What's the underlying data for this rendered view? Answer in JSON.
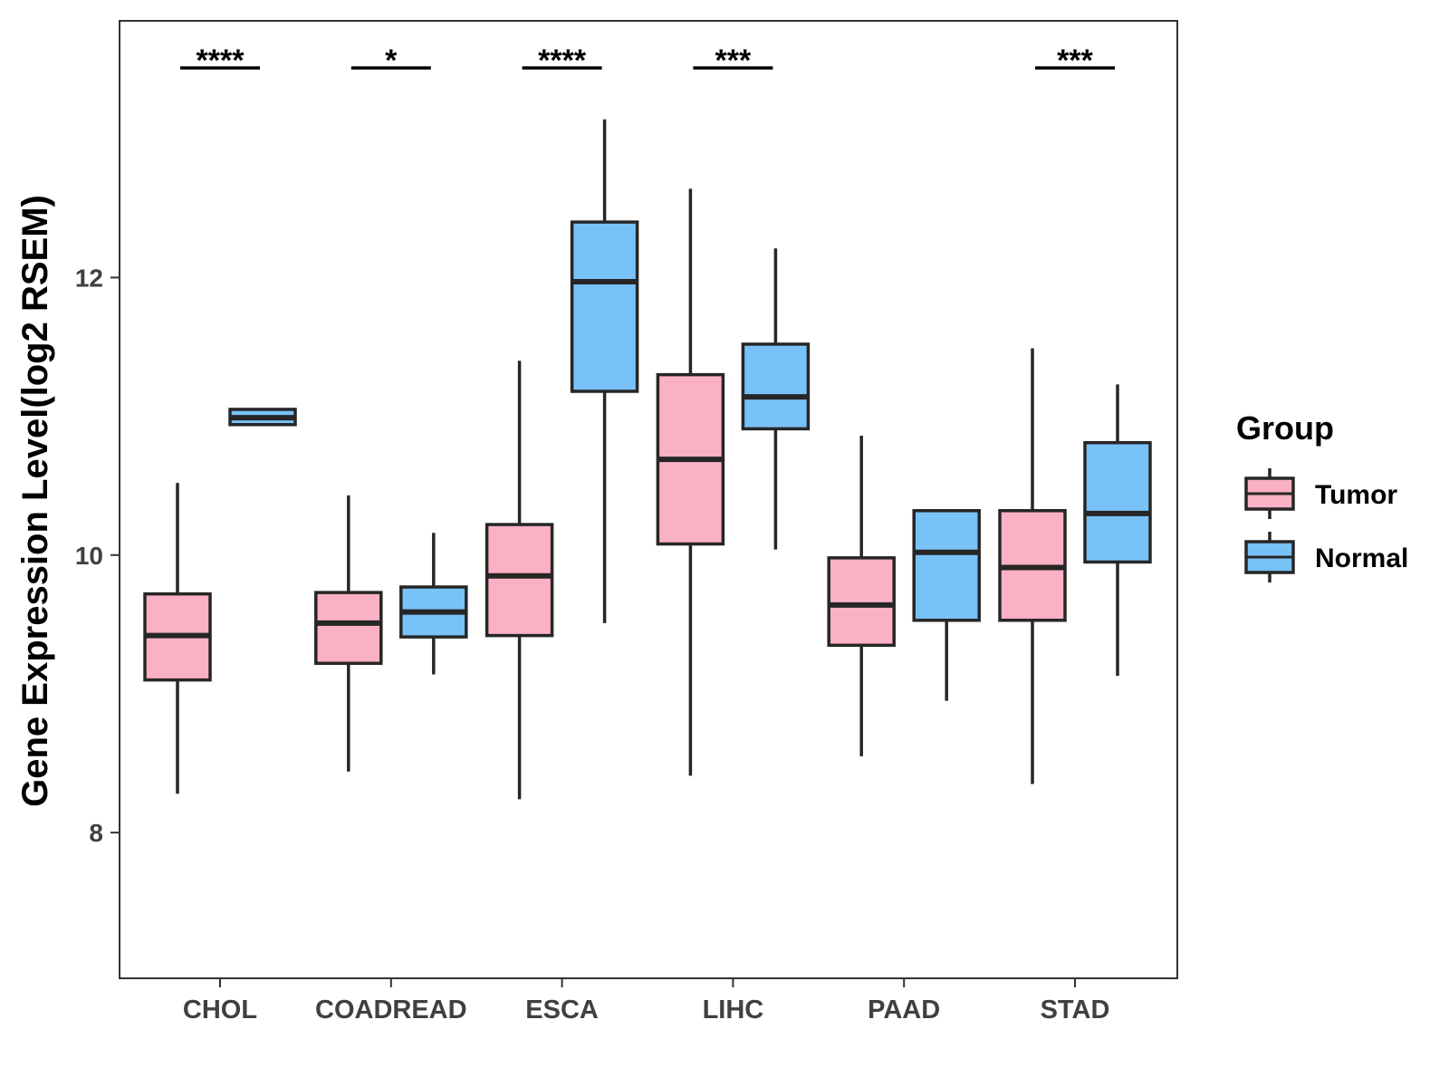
{
  "chart_data": {
    "type": "boxplot",
    "title": "",
    "xlabel": "",
    "ylabel": "Gene Expression Level(log2 RSEM)",
    "ylim": [
      6.95,
      13.85
    ],
    "yticks": [
      8,
      10,
      12
    ],
    "grid": false,
    "categories": [
      "CHOL",
      "COADREAD",
      "ESCA",
      "LIHC",
      "PAAD",
      "STAD"
    ],
    "legend": {
      "title": "Group",
      "position": "right",
      "entries": [
        "Tumor",
        "Normal"
      ]
    },
    "colors": {
      "Tumor": "#fbb1c4",
      "Normal": "#78c2f8",
      "outline": "#262626"
    },
    "series": [
      {
        "name": "Tumor",
        "boxes": [
          {
            "category": "CHOL",
            "whisker_low": 8.28,
            "q1": 9.1,
            "median": 9.42,
            "q3": 9.72,
            "whisker_high": 10.52
          },
          {
            "category": "COADREAD",
            "whisker_low": 8.44,
            "q1": 9.22,
            "median": 9.51,
            "q3": 9.73,
            "whisker_high": 10.43
          },
          {
            "category": "ESCA",
            "whisker_low": 8.24,
            "q1": 9.42,
            "median": 9.85,
            "q3": 10.22,
            "whisker_high": 11.4
          },
          {
            "category": "LIHC",
            "whisker_low": 8.41,
            "q1": 10.08,
            "median": 10.69,
            "q3": 11.3,
            "whisker_high": 12.64
          },
          {
            "category": "PAAD",
            "whisker_low": 8.55,
            "q1": 9.35,
            "median": 9.64,
            "q3": 9.98,
            "whisker_high": 10.86
          },
          {
            "category": "STAD",
            "whisker_low": 8.35,
            "q1": 9.53,
            "median": 9.91,
            "q3": 10.32,
            "whisker_high": 11.49
          }
        ]
      },
      {
        "name": "Normal",
        "boxes": [
          {
            "category": "CHOL",
            "whisker_low": 10.94,
            "q1": 10.94,
            "median": 10.99,
            "q3": 11.05,
            "whisker_high": 11.05
          },
          {
            "category": "COADREAD",
            "whisker_low": 9.14,
            "q1": 9.41,
            "median": 9.59,
            "q3": 9.77,
            "whisker_high": 10.16
          },
          {
            "category": "ESCA",
            "whisker_low": 9.51,
            "q1": 11.18,
            "median": 11.97,
            "q3": 12.4,
            "whisker_high": 13.14
          },
          {
            "category": "LIHC",
            "whisker_low": 10.04,
            "q1": 10.91,
            "median": 11.14,
            "q3": 11.52,
            "whisker_high": 12.21
          },
          {
            "category": "PAAD",
            "whisker_low": 8.95,
            "q1": 9.53,
            "median": 10.02,
            "q3": 10.32,
            "whisker_high": 10.32
          },
          {
            "category": "STAD",
            "whisker_low": 9.13,
            "q1": 9.95,
            "median": 10.3,
            "q3": 10.81,
            "whisker_high": 11.23
          }
        ]
      }
    ],
    "significance": [
      {
        "category": "CHOL",
        "label": "****"
      },
      {
        "category": "COADREAD",
        "label": "*"
      },
      {
        "category": "ESCA",
        "label": "****"
      },
      {
        "category": "LIHC",
        "label": "***"
      },
      {
        "category": "PAAD",
        "label": ""
      },
      {
        "category": "STAD",
        "label": "***"
      }
    ]
  }
}
